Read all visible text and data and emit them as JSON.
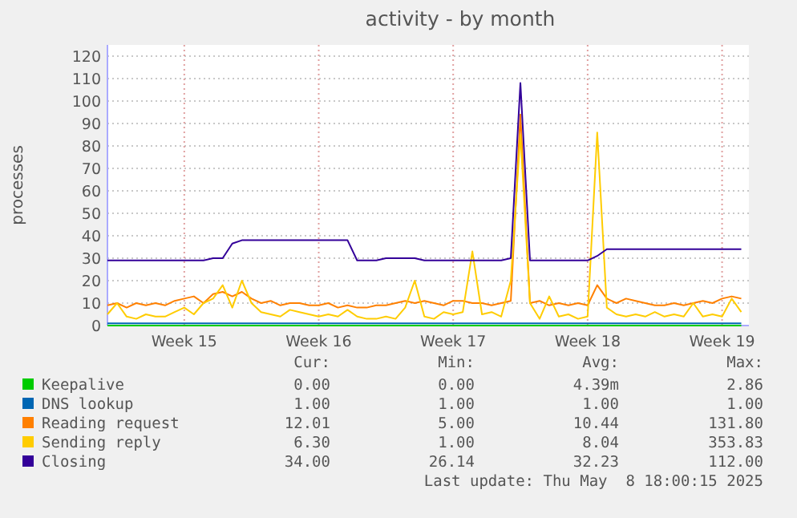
{
  "chart_data": {
    "type": "line",
    "title": "activity - by month",
    "ylabel": "processes",
    "x": [
      "2025-04-06T12:00",
      "2025-04-07T00:00",
      "2025-04-07T12:00",
      "2025-04-08T00:00",
      "2025-04-08T12:00",
      "2025-04-09T00:00",
      "2025-04-09T12:00",
      "2025-04-10T00:00",
      "2025-04-10T12:00",
      "2025-04-11T00:00",
      "2025-04-11T12:00",
      "2025-04-12T00:00",
      "2025-04-12T12:00",
      "2025-04-13T00:00",
      "2025-04-13T12:00",
      "2025-04-14T00:00",
      "2025-04-14T12:00",
      "2025-04-15T00:00",
      "2025-04-15T12:00",
      "2025-04-16T00:00",
      "2025-04-16T12:00",
      "2025-04-17T00:00",
      "2025-04-17T12:00",
      "2025-04-18T00:00",
      "2025-04-18T12:00",
      "2025-04-19T00:00",
      "2025-04-19T12:00",
      "2025-04-20T00:00",
      "2025-04-20T12:00",
      "2025-04-21T00:00",
      "2025-04-21T12:00",
      "2025-04-22T00:00",
      "2025-04-22T12:00",
      "2025-04-23T00:00",
      "2025-04-23T12:00",
      "2025-04-24T00:00",
      "2025-04-24T12:00",
      "2025-04-25T00:00",
      "2025-04-25T12:00",
      "2025-04-26T00:00",
      "2025-04-26T12:00",
      "2025-04-27T00:00",
      "2025-04-27T12:00",
      "2025-04-28T00:00",
      "2025-04-28T12:00",
      "2025-04-29T00:00",
      "2025-04-29T12:00",
      "2025-04-30T00:00",
      "2025-04-30T12:00",
      "2025-05-01T00:00",
      "2025-05-01T12:00",
      "2025-05-02T00:00",
      "2025-05-02T12:00",
      "2025-05-03T00:00",
      "2025-05-03T12:00",
      "2025-05-04T00:00",
      "2025-05-04T12:00",
      "2025-05-05T00:00",
      "2025-05-05T12:00",
      "2025-05-06T00:00",
      "2025-05-06T12:00",
      "2025-05-07T00:00",
      "2025-05-07T12:00",
      "2025-05-08T00:00",
      "2025-05-08T12:00",
      "2025-05-09T00:00",
      "2025-05-09T12:00"
    ],
    "series": [
      {
        "name": "Keepalive",
        "color": "#00cc00",
        "values": [
          0,
          0,
          0,
          0,
          0,
          0,
          0,
          0,
          0,
          0,
          0,
          0,
          0,
          0,
          0,
          0,
          0,
          0,
          0,
          0,
          0,
          0,
          0,
          0,
          0,
          0,
          0,
          0,
          0,
          0,
          0,
          0,
          0,
          0,
          0,
          0,
          0,
          0,
          0,
          0,
          0,
          0,
          0,
          0,
          0,
          0,
          0,
          0,
          0,
          0,
          0,
          0,
          0,
          0,
          0,
          0,
          0,
          0,
          0,
          0,
          0,
          0,
          0,
          0,
          0,
          0,
          0
        ]
      },
      {
        "name": "DNS lookup",
        "color": "#0066b3",
        "values": [
          1,
          1,
          1,
          1,
          1,
          1,
          1,
          1,
          1,
          1,
          1,
          1,
          1,
          1,
          1,
          1,
          1,
          1,
          1,
          1,
          1,
          1,
          1,
          1,
          1,
          1,
          1,
          1,
          1,
          1,
          1,
          1,
          1,
          1,
          1,
          1,
          1,
          1,
          1,
          1,
          1,
          1,
          1,
          1,
          1,
          1,
          1,
          1,
          1,
          1,
          1,
          1,
          1,
          1,
          1,
          1,
          1,
          1,
          1,
          1,
          1,
          1,
          1,
          1,
          1,
          1,
          1
        ]
      },
      {
        "name": "Reading request",
        "color": "#ff8000",
        "values": [
          9,
          10,
          8,
          10,
          9,
          10,
          9,
          11,
          12,
          13,
          10,
          14,
          15,
          13,
          15,
          12,
          10,
          11,
          9,
          10,
          10,
          9,
          9,
          10,
          8,
          9,
          8,
          8,
          9,
          9,
          10,
          11,
          10,
          11,
          10,
          9,
          11,
          11,
          10,
          10,
          9,
          10,
          11,
          94,
          10,
          11,
          9,
          10,
          9,
          10,
          9,
          18,
          12,
          10,
          12,
          11,
          10,
          9,
          9,
          10,
          9,
          10,
          11,
          10,
          12,
          13,
          12
        ]
      },
      {
        "name": "Sending reply",
        "color": "#ffcc00",
        "values": [
          5,
          10,
          4,
          3,
          5,
          4,
          4,
          6,
          8,
          5,
          10,
          12,
          18,
          8,
          20,
          10,
          6,
          5,
          4,
          7,
          6,
          5,
          4,
          5,
          4,
          7,
          4,
          3,
          3,
          4,
          3,
          8,
          20,
          4,
          3,
          6,
          5,
          6,
          33,
          5,
          6,
          4,
          20,
          85,
          10,
          3,
          13,
          4,
          5,
          3,
          4,
          86,
          8,
          5,
          4,
          5,
          4,
          6,
          4,
          5,
          4,
          10,
          4,
          5,
          4,
          12,
          6
        ]
      },
      {
        "name": "Closing",
        "color": "#330099",
        "values": [
          29,
          29,
          29,
          29,
          29,
          29,
          29,
          29,
          29,
          29,
          29,
          30,
          30,
          36.5,
          38,
          38,
          38,
          38,
          38,
          38,
          38,
          38,
          38,
          38,
          38,
          38,
          29,
          29,
          29,
          30,
          30,
          30,
          30,
          29,
          29,
          29,
          29,
          29,
          29,
          29,
          29,
          29,
          30,
          108,
          29,
          29,
          29,
          29,
          29,
          29,
          29,
          31,
          34,
          34,
          34,
          34,
          34,
          34,
          34,
          34,
          34,
          34,
          34,
          34,
          34,
          34,
          34
        ]
      }
    ],
    "xlim": [
      "2025-04-06T12:00",
      "2025-05-09T21:30"
    ],
    "xticks": [
      {
        "value": "2025-04-10T12:00",
        "label": "Week 15"
      },
      {
        "value": "2025-04-17T12:00",
        "label": "Week 16"
      },
      {
        "value": "2025-04-24T12:00",
        "label": "Week 17"
      },
      {
        "value": "2025-05-01T12:00",
        "label": "Week 18"
      },
      {
        "value": "2025-05-08T12:00",
        "label": "Week 19"
      }
    ],
    "ylim": [
      0,
      125
    ],
    "yticks": [
      0,
      10,
      20,
      30,
      40,
      50,
      60,
      70,
      80,
      90,
      100,
      110,
      120
    ],
    "grid": true,
    "legend": "bottom",
    "line_style": "solid",
    "marker": "none",
    "annotations": [
      "Cur:",
      "Min:",
      "Avg:",
      "Max:",
      "0.00",
      "0.00",
      "4.39m",
      "2.86",
      "1.00",
      "1.00",
      "1.00",
      "1.00",
      "12.01",
      "5.00",
      "10.44",
      "131.80",
      "6.30",
      "1.00",
      "8.04",
      "353.83",
      "34.00",
      "26.14",
      "32.23",
      "112.00",
      "Last update: Thu May  8 18:00:15 2025"
    ]
  }
}
